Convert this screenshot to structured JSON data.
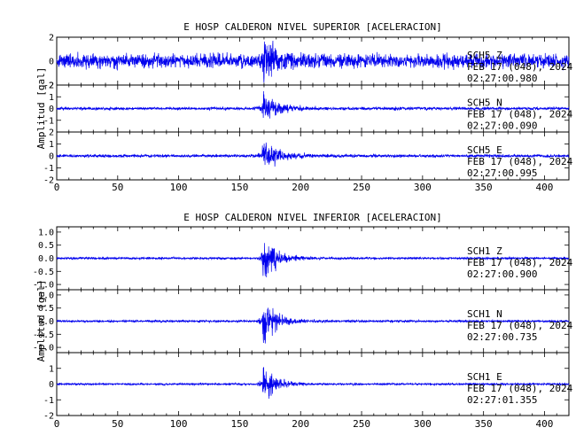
{
  "chart_data": [
    {
      "type": "line",
      "title": "E HOSP CALDERON NIVEL SUPERIOR [ACELERACION]",
      "ylabel": "Amplitud [gal]",
      "xlabel": "",
      "xlim": [
        0,
        420
      ],
      "xticks": [
        "0",
        "50",
        "100",
        "150",
        "200",
        "250",
        "300",
        "350",
        "400"
      ],
      "panels": [
        {
          "channel": "SCH5 Z",
          "date": "FEB 17 (048), 2024",
          "time": "02:27:00.980",
          "ylim": [
            -2,
            2
          ],
          "yticks": [
            "2",
            "0",
            "-2"
          ],
          "yvals": [
            2,
            0,
            -2
          ],
          "noise": 0.55,
          "peak": 2.1,
          "decay": 10
        },
        {
          "channel": "SCH5 N",
          "date": "FEB 17 (048), 2024",
          "time": "02:27:00.090",
          "ylim": [
            -2,
            2
          ],
          "yticks": [
            "2",
            "1",
            "0",
            "-1"
          ],
          "yvals": [
            2,
            1,
            0,
            -1
          ],
          "noise": 0.12,
          "peak": 1.3,
          "decay": 12
        },
        {
          "channel": "SCH5 E",
          "date": "FEB 17 (048), 2024",
          "time": "02:27:00.995",
          "ylim": [
            -2,
            2
          ],
          "yticks": [
            "2",
            "1",
            "0",
            "-1",
            "-2"
          ],
          "yvals": [
            2,
            1,
            0,
            -1,
            -2
          ],
          "noise": 0.12,
          "peak": 1.6,
          "decay": 11
        }
      ]
    },
    {
      "type": "line",
      "title": "E HOSP CALDERON NIVEL INFERIOR [ACELERACION]",
      "ylabel": "Amplitud [gal]",
      "xlabel": "",
      "xlim": [
        0,
        420
      ],
      "xticks": [
        "0",
        "50",
        "100",
        "150",
        "200",
        "250",
        "300",
        "350",
        "400"
      ],
      "panels": [
        {
          "channel": "SCH1 Z",
          "date": "FEB 17 (048), 2024",
          "time": "02:27:00.900",
          "ylim": [
            -1.2,
            1.2
          ],
          "yticks": [
            "1.0",
            "0.5",
            "0.0",
            "-0.5",
            "-1.0"
          ],
          "yvals": [
            1,
            0.5,
            0,
            -0.5,
            -1
          ],
          "noise": 0.04,
          "peak": 1.0,
          "decay": 10
        },
        {
          "channel": "SCH1 N",
          "date": "FEB 17 (048), 2024",
          "time": "02:27:00.735",
          "ylim": [
            -1.2,
            1.2
          ],
          "yticks": [
            "1.0",
            "0.5",
            "0.0",
            "-0.5",
            "-1.0"
          ],
          "yvals": [
            1,
            0.5,
            0,
            -0.5,
            -1
          ],
          "noise": 0.04,
          "peak": 1.05,
          "decay": 10
        },
        {
          "channel": "SCH1 E",
          "date": "FEB 17 (048), 2024",
          "time": "02:27:01.355",
          "ylim": [
            -2,
            2
          ],
          "yticks": [
            "1",
            "0",
            "-1",
            "-2"
          ],
          "yvals": [
            1,
            0,
            -1,
            -2
          ],
          "noise": 0.06,
          "peak": 1.6,
          "decay": 9
        }
      ]
    }
  ]
}
